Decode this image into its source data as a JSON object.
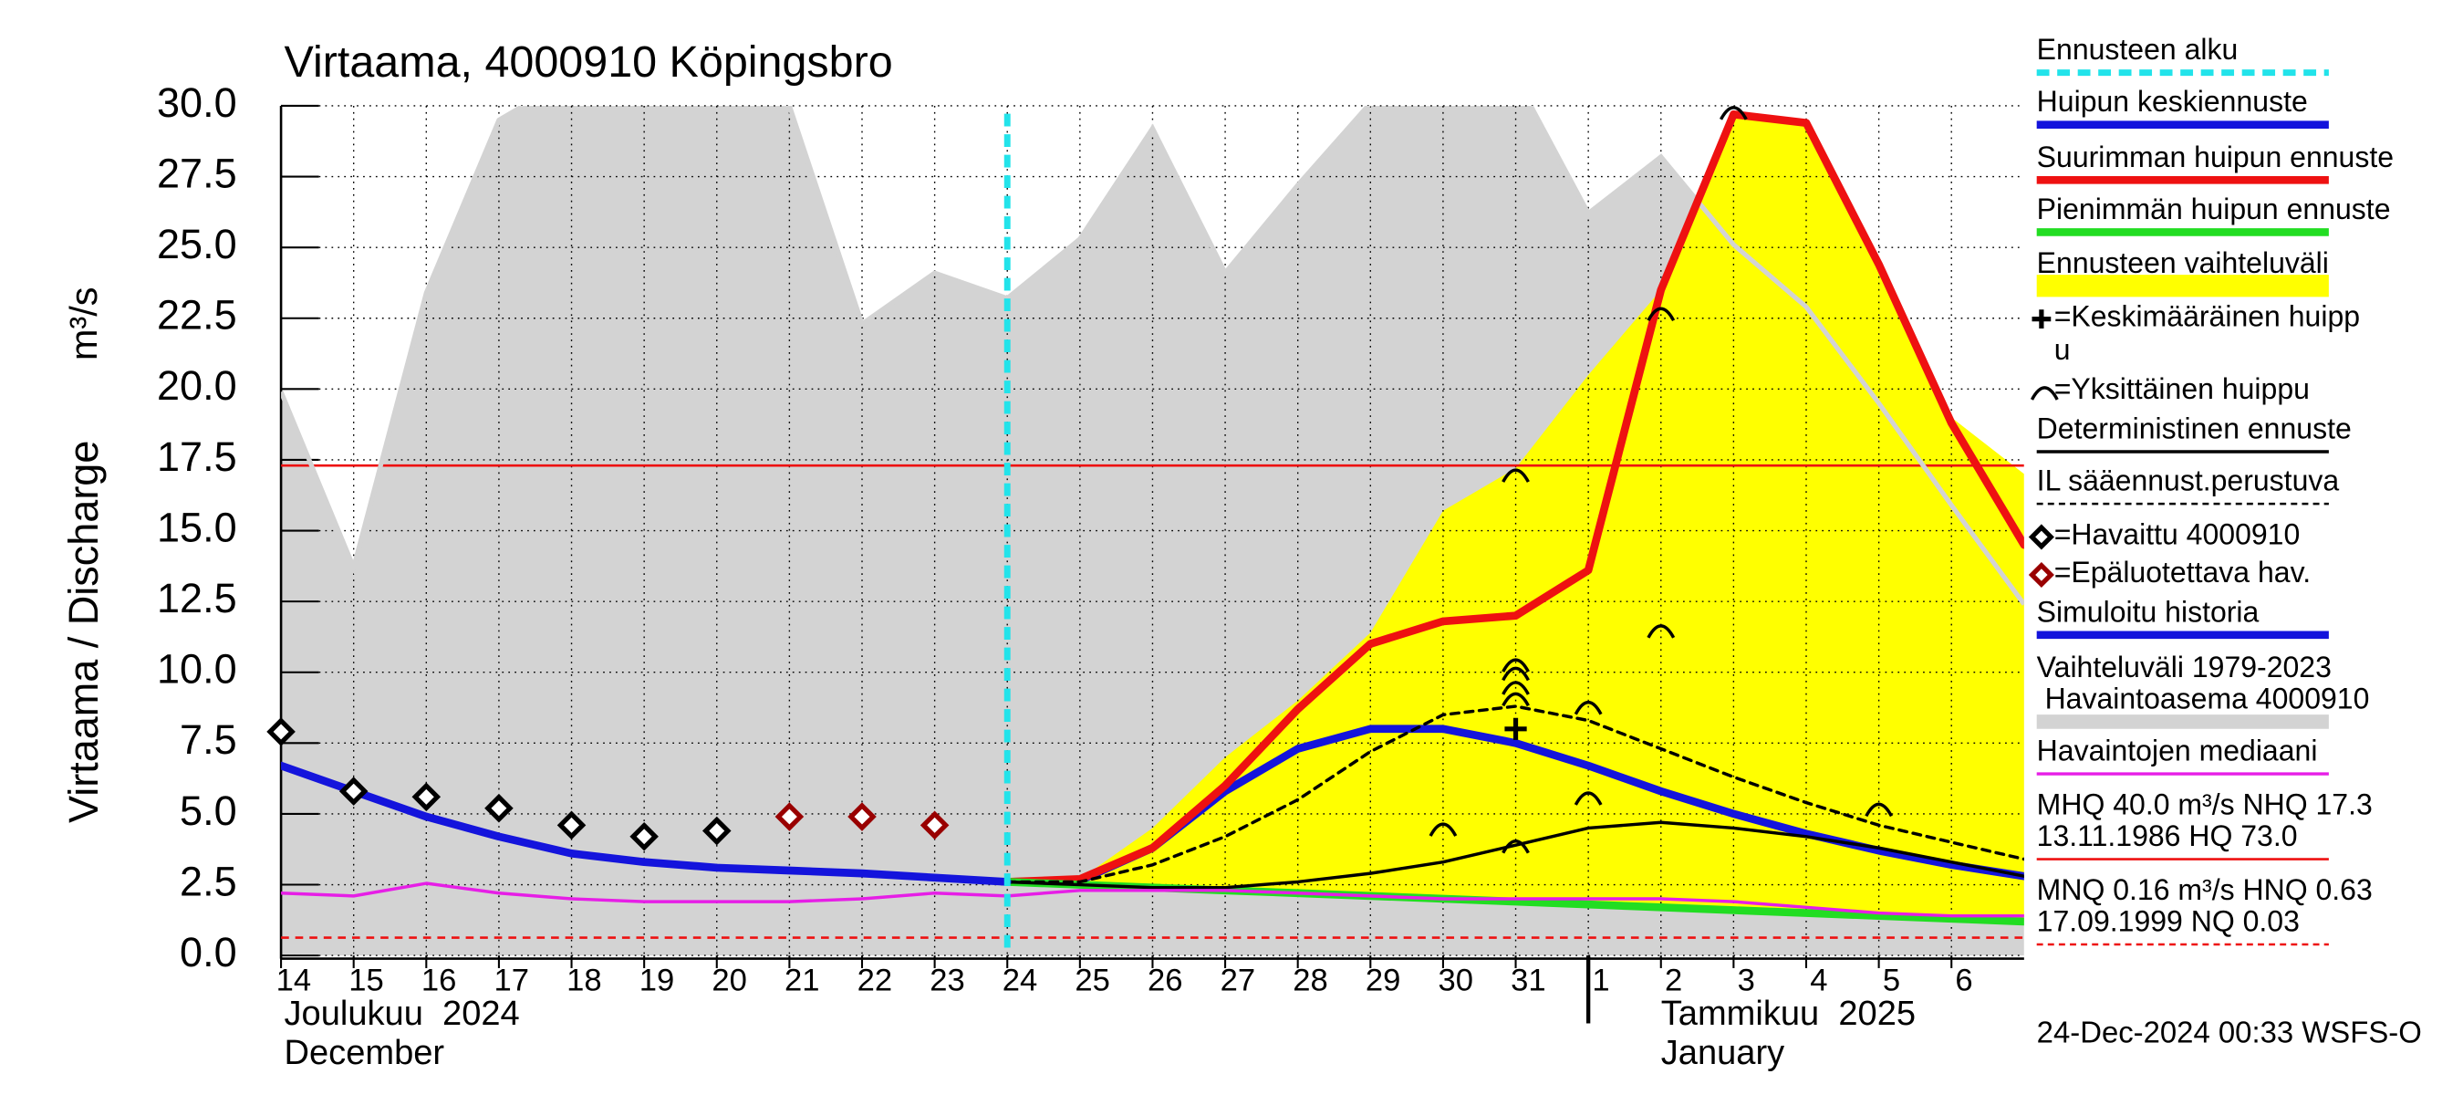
{
  "chart_data": {
    "type": "line",
    "title": "Virtaama, 4000910 Köpingsbro",
    "y_label": "Virtaama / Discharge",
    "y_unit": "m³/s",
    "timestamp": "24-Dec-2024 00:33 WSFS-O",
    "month_labels": [
      {
        "start": "2024-12-14",
        "lines": [
          "Joulukuu  2024",
          "December"
        ]
      },
      {
        "start": "2025-01-01",
        "lines": [
          "Tammikuu  2025",
          "January"
        ]
      }
    ],
    "xlim": [
      "2024-12-14",
      "2025-01-07"
    ],
    "xticks": [
      {
        "value": "2024-12-14",
        "label": "14"
      },
      {
        "value": "2024-12-15",
        "label": "15"
      },
      {
        "value": "2024-12-16",
        "label": "16"
      },
      {
        "value": "2024-12-17",
        "label": "17"
      },
      {
        "value": "2024-12-18",
        "label": "18"
      },
      {
        "value": "2024-12-19",
        "label": "19"
      },
      {
        "value": "2024-12-20",
        "label": "20"
      },
      {
        "value": "2024-12-21",
        "label": "21"
      },
      {
        "value": "2024-12-22",
        "label": "22"
      },
      {
        "value": "2024-12-23",
        "label": "23"
      },
      {
        "value": "2024-12-24",
        "label": "24"
      },
      {
        "value": "2024-12-25",
        "label": "25"
      },
      {
        "value": "2024-12-26",
        "label": "26"
      },
      {
        "value": "2024-12-27",
        "label": "27"
      },
      {
        "value": "2024-12-28",
        "label": "28"
      },
      {
        "value": "2024-12-29",
        "label": "29"
      },
      {
        "value": "2024-12-30",
        "label": "30"
      },
      {
        "value": "2024-12-31",
        "label": "31"
      },
      {
        "value": "2025-01-01",
        "label": "1"
      },
      {
        "value": "2025-01-02",
        "label": "2"
      },
      {
        "value": "2025-01-03",
        "label": "3"
      },
      {
        "value": "2025-01-04",
        "label": "4"
      },
      {
        "value": "2025-01-05",
        "label": "5"
      },
      {
        "value": "2025-01-06",
        "label": "6"
      }
    ],
    "ylim": [
      0,
      30
    ],
    "yticks": [
      {
        "value": 0,
        "label": "0.0"
      },
      2.5,
      {
        "value": 5,
        "label": "5.0"
      },
      7.5,
      {
        "value": 10,
        "label": "10.0"
      },
      12.5,
      {
        "value": 15,
        "label": "15.0"
      },
      17.5,
      {
        "value": 20,
        "label": "20.0"
      },
      22.5,
      {
        "value": 25,
        "label": "25.0"
      },
      27.5,
      {
        "value": 30,
        "label": "30.0"
      }
    ],
    "grid": true,
    "series": [
      {
        "name": "Ennusteen alku",
        "kind": "vline",
        "color": "#22e3ea",
        "x": [
          "2024-12-24"
        ]
      },
      {
        "name": "Huipun keskiennuste",
        "kind": "thick-line",
        "color": "#1414dc",
        "x": [
          "2024-12-24",
          "2024-12-25",
          "2024-12-26",
          "2024-12-27",
          "2024-12-28",
          "2024-12-29",
          "2024-12-30",
          "2024-12-31",
          "2025-01-01",
          "2025-01-02",
          "2025-01-03",
          "2025-01-04",
          "2025-01-05",
          "2025-01-06",
          "2025-01-07"
        ],
        "values": [
          2.6,
          2.65,
          3.8,
          5.8,
          7.3,
          8.0,
          8.0,
          7.5,
          6.7,
          5.8,
          5.0,
          4.3,
          3.7,
          3.2,
          2.8
        ]
      },
      {
        "name": "Suurimman huipun ennuste",
        "kind": "thick-line",
        "color": "#ee1111",
        "x": [
          "2024-12-24",
          "2024-12-25",
          "2024-12-26",
          "2024-12-27",
          "2024-12-28",
          "2024-12-29",
          "2024-12-30",
          "2024-12-31",
          "2025-01-01",
          "2025-01-02",
          "2025-01-03",
          "2025-01-04",
          "2025-01-05",
          "2025-01-06",
          "2025-01-07"
        ],
        "values": [
          2.6,
          2.7,
          3.8,
          6.0,
          8.7,
          11.0,
          11.8,
          12.0,
          13.6,
          23.5,
          29.7,
          29.4,
          24.4,
          18.8,
          14.5
        ]
      },
      {
        "name": "Pienimmän huipun ennuste",
        "kind": "thick-line",
        "color": "#22dd22",
        "x": [
          "2024-12-24",
          "2024-12-25",
          "2024-12-26",
          "2024-12-27",
          "2024-12-28",
          "2024-12-29",
          "2024-12-30",
          "2024-12-31",
          "2025-01-01",
          "2025-01-02",
          "2025-01-03",
          "2025-01-04",
          "2025-01-05",
          "2025-01-06",
          "2025-01-07"
        ],
        "values": [
          2.6,
          2.5,
          2.4,
          2.3,
          2.2,
          2.1,
          2.0,
          1.9,
          1.8,
          1.7,
          1.6,
          1.5,
          1.4,
          1.3,
          1.2
        ]
      },
      {
        "name": "Ennusteen vaihteluväli",
        "kind": "band",
        "color": "#ffff00",
        "x": [
          "2024-12-24",
          "2024-12-25",
          "2024-12-26",
          "2024-12-27",
          "2024-12-28",
          "2024-12-29",
          "2024-12-30",
          "2024-12-31",
          "2025-01-01",
          "2025-01-02",
          "2025-01-03",
          "2025-01-04",
          "2025-01-05",
          "2025-01-06",
          "2025-01-07"
        ],
        "values": [
          2.6,
          2.7,
          4.5,
          7.0,
          9.0,
          11.4,
          15.7,
          17.2,
          20.5,
          23.5,
          29.7,
          29.4,
          24.5,
          19.0,
          17.0
        ],
        "lower": [
          2.6,
          2.5,
          2.4,
          2.3,
          2.2,
          2.1,
          2.0,
          1.9,
          1.8,
          1.7,
          1.6,
          1.5,
          1.4,
          1.3,
          1.2
        ]
      },
      {
        "name": "=Keskimääräinen huipp\nu",
        "kind": "mean-peak",
        "color": "#000000",
        "x": [
          "2024-12-31"
        ],
        "values": [
          8.0
        ]
      },
      {
        "name": "=Yksittäinen huippu",
        "kind": "peaks",
        "color": "#000000",
        "x": [
          "2024-12-30",
          "2024-12-31",
          "2024-12-31",
          "2024-12-31",
          "2024-12-31",
          "2024-12-31",
          "2024-12-31",
          "2025-01-01",
          "2025-01-01",
          "2025-01-02",
          "2025-01-02",
          "2025-01-03",
          "2025-01-05"
        ],
        "values": [
          4.5,
          17.0,
          10.3,
          10.0,
          9.5,
          9.1,
          3.9,
          8.8,
          5.6,
          22.7,
          11.5,
          29.8,
          5.2
        ]
      },
      {
        "name": "Deterministinen ennuste",
        "kind": "line",
        "color": "#000000",
        "x": [
          "2024-12-24",
          "2024-12-25",
          "2024-12-26",
          "2024-12-27",
          "2024-12-28",
          "2024-12-29",
          "2024-12-30",
          "2024-12-31",
          "2025-01-01",
          "2025-01-02",
          "2025-01-03",
          "2025-01-04",
          "2025-01-05",
          "2025-01-06",
          "2025-01-07"
        ],
        "values": [
          2.6,
          2.5,
          2.4,
          2.4,
          2.6,
          2.9,
          3.3,
          3.9,
          4.5,
          4.7,
          4.5,
          4.2,
          3.8,
          3.3,
          2.8
        ]
      },
      {
        "name": "IL sääennust.perustuva",
        "kind": "dashed-line",
        "color": "#000000",
        "x": [
          "2024-12-24",
          "2024-12-25",
          "2024-12-26",
          "2024-12-27",
          "2024-12-28",
          "2024-12-29",
          "2024-12-30",
          "2024-12-31",
          "2025-01-01",
          "2025-01-02",
          "2025-01-03",
          "2025-01-04",
          "2025-01-05",
          "2025-01-06",
          "2025-01-07"
        ],
        "values": [
          2.6,
          2.6,
          3.2,
          4.2,
          5.5,
          7.2,
          8.5,
          8.8,
          8.3,
          7.3,
          6.3,
          5.4,
          4.6,
          4.0,
          3.4
        ]
      },
      {
        "name": "=Havaittu 4000910",
        "kind": "diamonds",
        "color": "#000000",
        "x": [
          "2024-12-14",
          "2024-12-15",
          "2024-12-16",
          "2024-12-17",
          "2024-12-18",
          "2024-12-19",
          "2024-12-20"
        ],
        "values": [
          7.9,
          5.8,
          5.6,
          5.2,
          4.6,
          4.2,
          4.4
        ]
      },
      {
        "name": "=Epäluotettava hav.",
        "kind": "diamonds",
        "color": "#990000",
        "x": [
          "2024-12-21",
          "2024-12-22",
          "2024-12-23"
        ],
        "values": [
          4.9,
          4.9,
          4.6
        ]
      },
      {
        "name": "Simuloitu historia",
        "kind": "thick-line",
        "color": "#1414dc",
        "x": [
          "2024-12-14",
          "2024-12-15",
          "2024-12-16",
          "2024-12-17",
          "2024-12-18",
          "2024-12-19",
          "2024-12-20",
          "2024-12-21",
          "2024-12-22",
          "2024-12-23",
          "2024-12-24"
        ],
        "values": [
          6.7,
          5.8,
          4.9,
          4.2,
          3.6,
          3.3,
          3.1,
          3.0,
          2.9,
          2.75,
          2.6
        ]
      },
      {
        "name": "Vaihteluväli 1979-2023\n Havaintoasema 4000910",
        "kind": "area",
        "color": "#d3d3d3",
        "x": [
          "2024-12-14",
          "2024-12-15",
          "2024-12-16",
          "2024-12-17",
          "2024-12-18",
          "2024-12-19",
          "2024-12-20",
          "2024-12-21",
          "2024-12-22",
          "2024-12-23",
          "2024-12-24",
          "2024-12-25",
          "2024-12-26",
          "2024-12-27",
          "2024-12-28",
          "2024-12-29",
          "2024-12-30",
          "2024-12-31",
          "2025-01-01",
          "2025-01-02",
          "2025-01-03",
          "2025-01-04",
          "2025-01-05",
          "2025-01-06",
          "2025-01-07"
        ],
        "values": [
          19.9,
          13.7,
          23.4,
          29.5,
          31,
          31,
          31,
          30,
          22.3,
          24.1,
          23.2,
          25.3,
          29.2,
          24.1,
          27.2,
          30.1,
          31,
          31,
          26.2,
          28.2,
          25.1,
          22.9,
          19.5,
          15.9,
          12.4
        ]
      },
      {
        "name": "Havaintojen mediaani",
        "kind": "line",
        "color": "#e61ee6",
        "x": [
          "2024-12-14",
          "2024-12-15",
          "2024-12-16",
          "2024-12-17",
          "2024-12-18",
          "2024-12-19",
          "2024-12-20",
          "2024-12-21",
          "2024-12-22",
          "2024-12-23",
          "2024-12-24",
          "2024-12-25",
          "2024-12-26",
          "2024-12-27",
          "2024-12-28",
          "2024-12-29",
          "2024-12-30",
          "2024-12-31",
          "2025-01-01",
          "2025-01-02",
          "2025-01-03",
          "2025-01-04",
          "2025-01-05",
          "2025-01-06",
          "2025-01-07"
        ],
        "values": [
          2.2,
          2.1,
          2.55,
          2.2,
          2.0,
          1.9,
          1.9,
          1.9,
          2.0,
          2.2,
          2.1,
          2.3,
          2.3,
          2.3,
          2.2,
          2.1,
          2.0,
          2.0,
          2.0,
          2.0,
          1.9,
          1.7,
          1.5,
          1.4,
          1.4
        ]
      },
      {
        "name": "MHQ 40.0 m³/s NHQ 17.3\n13.11.1986 HQ 73.0",
        "kind": "hline",
        "color": "#ee1111",
        "values": [
          17.3
        ]
      },
      {
        "name": "MNQ 0.16 m³/s HNQ 0.63\n17.09.1999 NQ 0.03",
        "kind": "dashed-hline",
        "color": "#ee1111",
        "values": [
          0.63
        ]
      }
    ]
  }
}
